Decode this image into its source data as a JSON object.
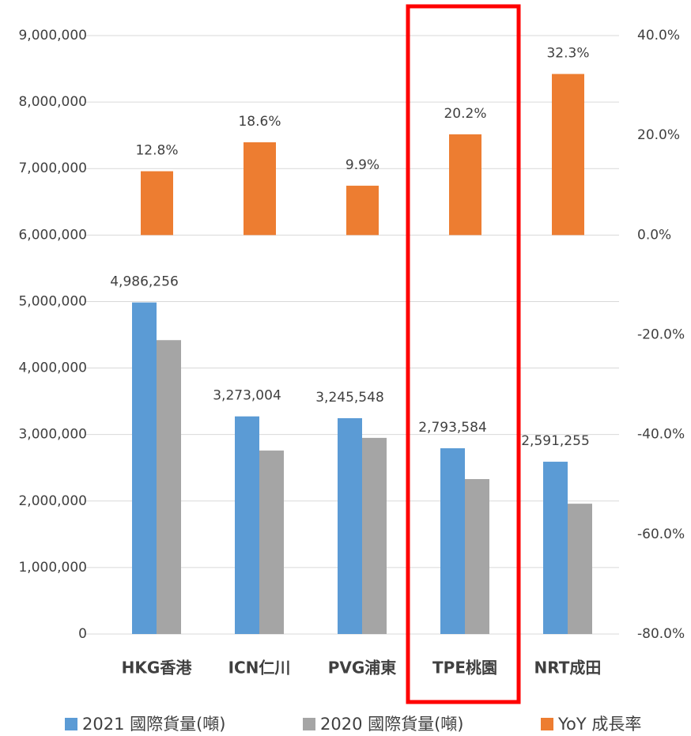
{
  "chart_data": {
    "type": "bar",
    "categories": [
      "HKG香港",
      "ICN仁川",
      "PVG浦東",
      "TPE桃園",
      "NRT成田"
    ],
    "series": [
      {
        "name": "2021 國際貨量(噸)",
        "color": "#5b9bd5",
        "values": [
          4986256,
          3273004,
          3245548,
          2793584,
          2591255
        ],
        "value_labels": [
          "4,986,256",
          "3,273,004",
          "3,245,548",
          "2,793,584",
          "2,591,255"
        ]
      },
      {
        "name": "2020 國際貨量(噸)",
        "color": "#a5a5a5",
        "values": [
          4420000,
          2760000,
          2950000,
          2330000,
          1960000
        ]
      },
      {
        "name": "YoY 成長率",
        "color": "#ed7d31",
        "axis": "y2",
        "values": [
          12.8,
          18.6,
          9.9,
          20.2,
          32.3
        ],
        "value_labels": [
          "12.8%",
          "18.6%",
          "9.9%",
          "20.2%",
          "32.3%"
        ]
      }
    ],
    "ylim": [
      0,
      9000000
    ],
    "yticks": [
      0,
      {
        "value": 1000000,
        "label": "1,000,000"
      },
      {
        "value": 2000000,
        "label": "2,000,000"
      },
      {
        "value": 3000000,
        "label": "3,000,000"
      },
      {
        "value": 4000000,
        "label": "4,000,000"
      },
      {
        "value": 5000000,
        "label": "5,000,000"
      },
      {
        "value": 6000000,
        "label": "6,000,000"
      },
      {
        "value": 7000000,
        "label": "7,000,000"
      },
      {
        "value": 8000000,
        "label": "8,000,000"
      },
      {
        "value": 9000000,
        "label": "9,000,000"
      }
    ],
    "y2lim": [
      -80,
      40
    ],
    "y2ticks": [
      {
        "value": -80,
        "label": "-80.0%"
      },
      {
        "value": -60,
        "label": "-60.0%"
      },
      {
        "value": -40,
        "label": "-40.0%"
      },
      {
        "value": -20,
        "label": "-20.0%"
      },
      {
        "value": 0,
        "label": "0.0%"
      },
      {
        "value": 20,
        "label": "20.0%"
      },
      {
        "value": 40,
        "label": "40.0%"
      }
    ],
    "grid": true,
    "legend": "bottom"
  }
}
